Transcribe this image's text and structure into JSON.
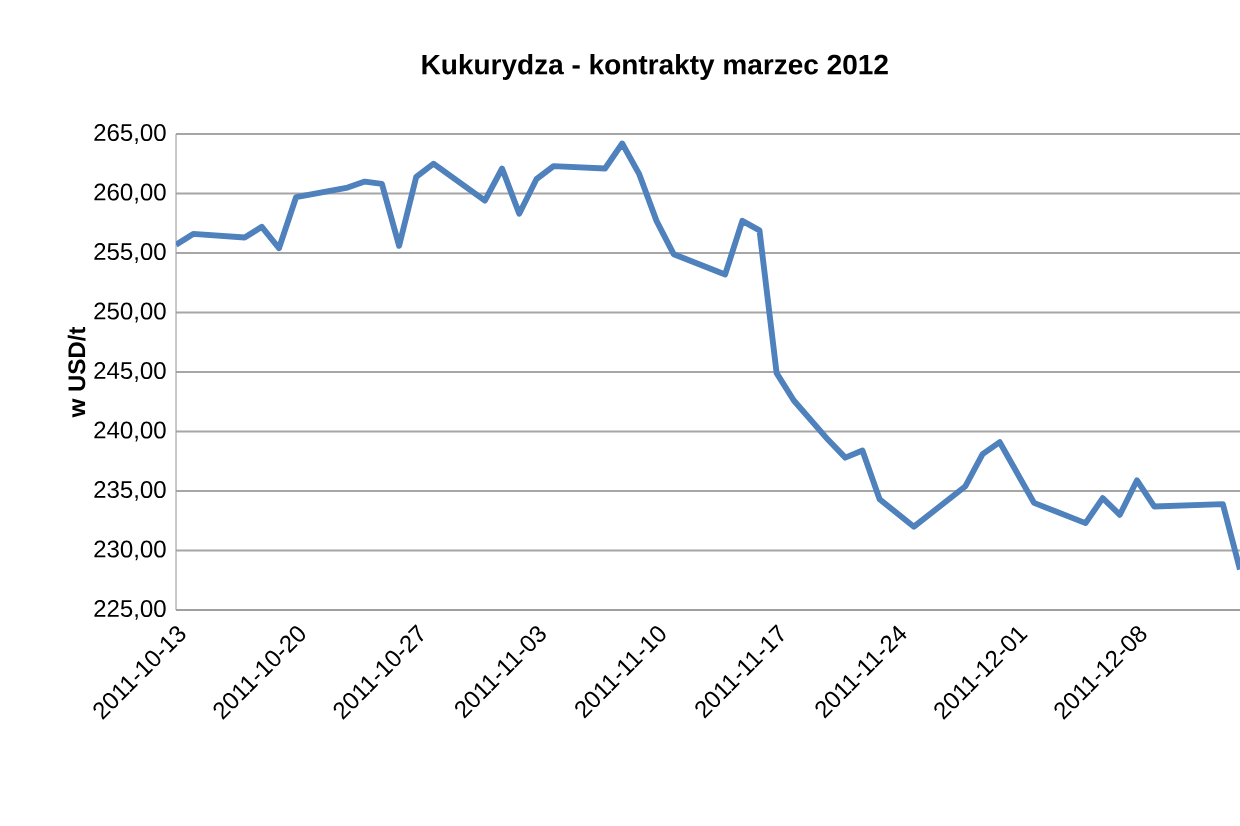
{
  "chart_data": {
    "type": "line",
    "title": "Kukurydza - kontrakty marzec 2012",
    "ylabel": "w USD/t",
    "x": [
      "2011-10-13",
      "2011-10-14",
      "2011-10-17",
      "2011-10-18",
      "2011-10-19",
      "2011-10-20",
      "2011-10-23",
      "2011-10-24",
      "2011-10-25",
      "2011-10-26",
      "2011-10-27",
      "2011-10-28",
      "2011-10-31",
      "2011-11-01",
      "2011-11-02",
      "2011-11-03",
      "2011-11-04",
      "2011-11-07",
      "2011-11-08",
      "2011-11-09",
      "2011-11-10",
      "2011-11-11",
      "2011-11-14",
      "2011-11-15",
      "2011-11-16",
      "2011-11-17",
      "2011-11-18",
      "2011-11-20",
      "2011-11-21",
      "2011-11-22",
      "2011-11-23",
      "2011-11-25",
      "2011-11-28",
      "2011-11-29",
      "2011-11-30",
      "2011-12-02",
      "2011-12-05",
      "2011-12-06",
      "2011-12-07",
      "2011-12-08",
      "2011-12-09",
      "2011-12-13",
      "2011-12-14"
    ],
    "series": [
      {
        "color": "#4f81bd",
        "values": [
          255.7,
          256.6,
          256.3,
          257.2,
          255.4,
          259.7,
          260.5,
          261.0,
          260.8,
          255.6,
          261.4,
          262.5,
          259.4,
          262.1,
          258.3,
          261.2,
          262.3,
          262.1,
          264.2,
          261.6,
          257.7,
          254.9,
          253.2,
          257.7,
          256.9,
          244.9,
          242.6,
          239.3,
          237.8,
          238.4,
          234.3,
          232.0,
          235.4,
          238.1,
          239.1,
          234.0,
          232.3,
          234.4,
          233.0,
          235.9,
          233.7,
          233.9,
          228.4
        ]
      }
    ],
    "xlim": [
      "2011-10-13",
      "2011-12-14"
    ],
    "xticks": [
      "2011-10-13",
      "2011-10-20",
      "2011-10-27",
      "2011-11-03",
      "2011-11-10",
      "2011-11-17",
      "2011-11-24",
      "2011-12-01",
      "2011-12-08"
    ],
    "ylim": [
      225,
      265
    ],
    "yticks": [
      {
        "value": 225,
        "label": "225,00"
      },
      {
        "value": 230,
        "label": "230,00"
      },
      {
        "value": 235,
        "label": "235,00"
      },
      {
        "value": 240,
        "label": "240,00"
      },
      {
        "value": 245,
        "label": "245,00"
      },
      {
        "value": 250,
        "label": "250,00"
      },
      {
        "value": 255,
        "label": "255,00"
      },
      {
        "value": 260,
        "label": "260,00"
      },
      {
        "value": 265,
        "label": "265,00"
      }
    ],
    "grid": "y",
    "marker": "none",
    "line_style": "solid"
  }
}
